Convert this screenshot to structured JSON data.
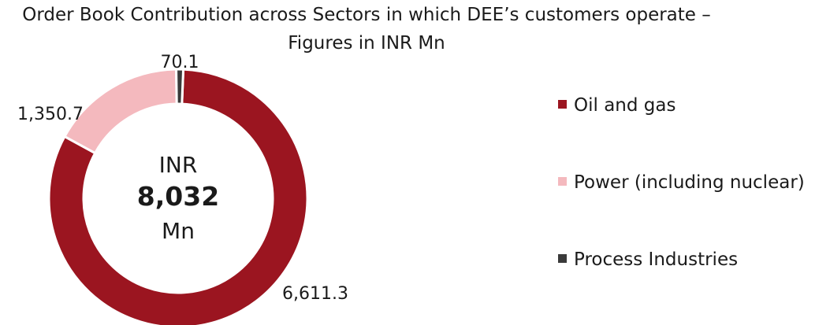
{
  "title_line1": "Order Book Contribution across Sectors in which DEE’s customers operate –",
  "title_line2": "Figures in INR Mn",
  "center": {
    "line1": "INR",
    "total": "8,032",
    "line3": "Mn"
  },
  "chart_data": {
    "type": "pie",
    "variant": "donut",
    "title": "Order Book Contribution across Sectors in which DEE’s customers operate – Figures in INR Mn",
    "legend_position": "right",
    "series": [
      {
        "name": "Oil and gas",
        "value": 6611.3,
        "label": "6,611.3",
        "color": "#9b1520"
      },
      {
        "name": "Power (including nuclear)",
        "value": 1350.7,
        "label": "1,350.7",
        "color": "#f4b9be"
      },
      {
        "name": "Process Industries",
        "value": 70.1,
        "label": "70.1",
        "color": "#3a3a3a"
      }
    ]
  }
}
